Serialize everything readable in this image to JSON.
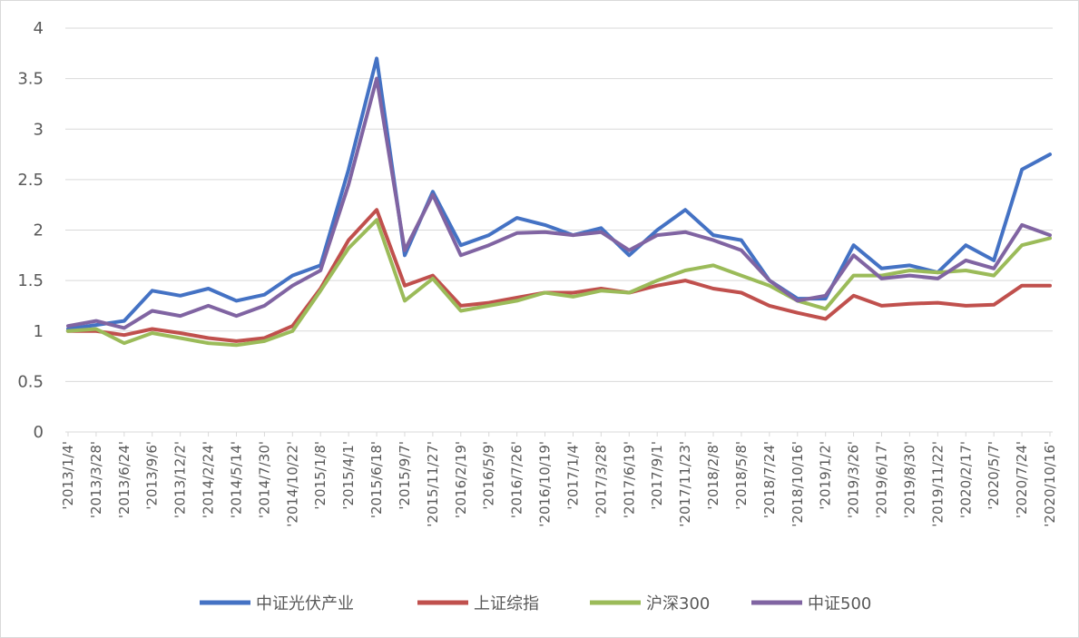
{
  "chart_data": {
    "type": "line",
    "title": "",
    "xlabel": "",
    "ylabel": "",
    "ylim": [
      0,
      4
    ],
    "yticks": [
      "0",
      "0.5",
      "1",
      "1.5",
      "2",
      "2.5",
      "3",
      "3.5",
      "4"
    ],
    "grid": "horizontal",
    "legend_position": "bottom",
    "xtick_labels": [
      "'2013/1/4'",
      "'2013/3/28'",
      "'2013/6/24'",
      "'2013/9/6'",
      "'2013/12/2'",
      "'2014/2/24'",
      "'2014/5/14'",
      "'2014/7/30'",
      "'2014/10/22'",
      "'2015/1/8'",
      "'2015/4/1'",
      "'2015/6/18'",
      "'2015/9/7'",
      "'2015/11/27'",
      "'2016/2/19'",
      "'2016/5/9'",
      "'2016/7/26'",
      "'2016/10/19'",
      "'2017/1/4'",
      "'2017/3/28'",
      "'2017/6/19'",
      "'2017/9/1'",
      "'2017/11/23'",
      "'2018/2/8'",
      "'2018/5/8'",
      "'2018/7/24'",
      "'2018/10/16'",
      "'2019/1/2'",
      "'2019/3/26'",
      "'2019/6/17'",
      "'2019/8/30'",
      "'2019/11/22'",
      "'2020/2/17'",
      "'2020/5/7'",
      "'2020/7/24'",
      "'2020/10/16'"
    ],
    "x": [
      "2013-01-04",
      "2013-03-28",
      "2013-06-24",
      "2013-09-06",
      "2013-12-02",
      "2014-02-24",
      "2014-05-14",
      "2014-07-30",
      "2014-10-22",
      "2015-01-08",
      "2015-04-01",
      "2015-06-18",
      "2015-09-07",
      "2015-11-27",
      "2016-02-19",
      "2016-05-09",
      "2016-07-26",
      "2016-10-19",
      "2017-01-04",
      "2017-03-28",
      "2017-06-19",
      "2017-09-01",
      "2017-11-23",
      "2018-02-08",
      "2018-05-08",
      "2018-07-24",
      "2018-10-16",
      "2019-01-02",
      "2019-03-26",
      "2019-06-17",
      "2019-08-30",
      "2019-11-22",
      "2020-02-17",
      "2020-05-07",
      "2020-07-24",
      "2020-10-16"
    ],
    "series": [
      {
        "name": "中证光伏产业",
        "color": "#4472c4",
        "values": [
          1.02,
          1.06,
          1.1,
          1.4,
          1.35,
          1.42,
          1.3,
          1.36,
          1.55,
          1.65,
          2.6,
          3.7,
          1.75,
          2.38,
          1.85,
          1.95,
          2.12,
          2.05,
          1.95,
          2.02,
          1.75,
          2.0,
          2.2,
          1.95,
          1.9,
          1.5,
          1.32,
          1.32,
          1.85,
          1.62,
          1.65,
          1.58,
          1.85,
          1.7,
          2.6,
          2.75
        ]
      },
      {
        "name": "上证综指",
        "color": "#c0504d",
        "values": [
          1.0,
          1.0,
          0.96,
          1.02,
          0.98,
          0.93,
          0.9,
          0.93,
          1.05,
          1.42,
          1.9,
          2.2,
          1.45,
          1.55,
          1.25,
          1.28,
          1.33,
          1.38,
          1.38,
          1.42,
          1.38,
          1.45,
          1.5,
          1.42,
          1.38,
          1.25,
          1.18,
          1.12,
          1.35,
          1.25,
          1.27,
          1.28,
          1.25,
          1.26,
          1.45,
          1.45
        ]
      },
      {
        "name": "沪深300",
        "color": "#9bbb59",
        "values": [
          1.0,
          1.02,
          0.88,
          0.98,
          0.93,
          0.88,
          0.86,
          0.9,
          1.0,
          1.4,
          1.82,
          2.1,
          1.3,
          1.52,
          1.2,
          1.25,
          1.3,
          1.38,
          1.34,
          1.4,
          1.38,
          1.5,
          1.6,
          1.65,
          1.55,
          1.45,
          1.3,
          1.22,
          1.55,
          1.55,
          1.6,
          1.58,
          1.6,
          1.55,
          1.85,
          1.92
        ]
      },
      {
        "name": "中证500",
        "color": "#8064a2",
        "values": [
          1.05,
          1.1,
          1.03,
          1.2,
          1.15,
          1.25,
          1.15,
          1.25,
          1.45,
          1.6,
          2.45,
          3.5,
          1.8,
          2.35,
          1.75,
          1.85,
          1.97,
          1.98,
          1.95,
          1.98,
          1.8,
          1.95,
          1.98,
          1.9,
          1.8,
          1.5,
          1.3,
          1.35,
          1.75,
          1.52,
          1.55,
          1.52,
          1.7,
          1.62,
          2.05,
          1.95
        ]
      }
    ]
  }
}
